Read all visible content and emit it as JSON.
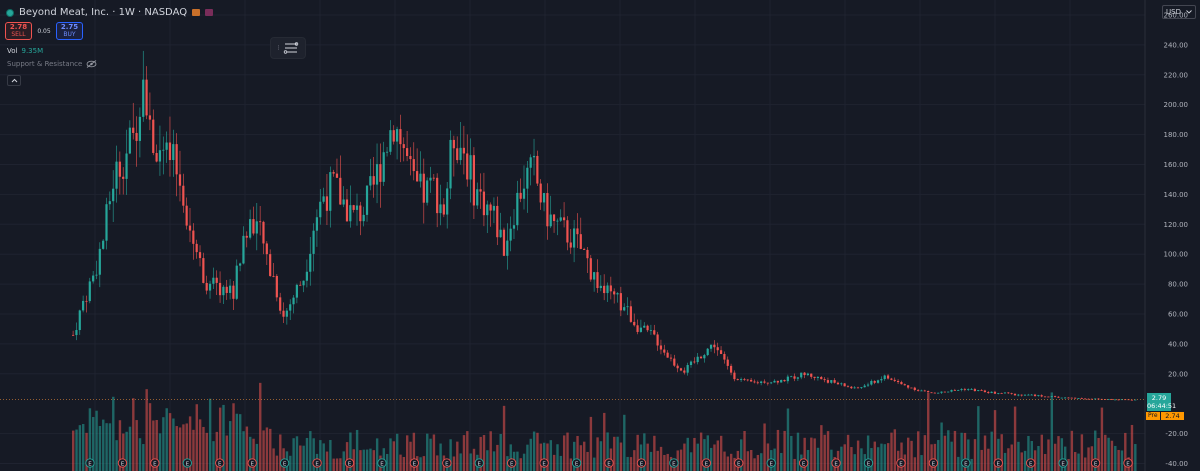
{
  "header": {
    "title": "Beyond Meat, Inc. · 1W · NASDAQ",
    "sell_price": "2.78",
    "sell_label": "SELL",
    "spread": "0.05",
    "buy_price": "2.75",
    "buy_label": "BUY",
    "vol_label": "Vol",
    "vol_value": "9.35M",
    "indicator_label": "Support & Resistance",
    "currency": "USD"
  },
  "last_price": {
    "value": "2.79",
    "countdown": "06:44:51",
    "pre_label": "Pre",
    "pre_value": "2.74"
  },
  "colors": {
    "background": "#161a25",
    "up": "#26a69a",
    "down": "#ef5350",
    "grid": "#1f2330",
    "axis_text": "#b2b5be",
    "price_line": "#26a69a",
    "pre_market": "#ff9800"
  },
  "icons": {
    "live": "live-dot-icon",
    "flag_a": "exchange-flag-icon",
    "flag_b": "data-flag-icon",
    "visibility": "eye-crossed-icon",
    "collapse": "chevron-up-icon",
    "toolbar": "drawing-list-icon",
    "dropdown": "chevron-down-icon"
  },
  "chart_data": {
    "type": "candlestick",
    "interval": "1W",
    "ylim": [
      -45,
      270
    ],
    "y_ticks": [
      "260.00",
      "240.00",
      "220.00",
      "200.00",
      "180.00",
      "160.00",
      "140.00",
      "120.00",
      "100.00",
      "80.00",
      "60.00",
      "40.00",
      "20.00",
      "-20.00",
      "-40.00"
    ],
    "y_tick_values": [
      260,
      240,
      220,
      200,
      180,
      160,
      140,
      120,
      100,
      80,
      60,
      40,
      20,
      -20,
      -40
    ],
    "grid": true,
    "last_price": 2.79,
    "earnings_events": 33,
    "trend": [
      [
        0,
        46
      ],
      [
        3,
        68
      ],
      [
        6,
        85
      ],
      [
        9,
        110
      ],
      [
        12,
        150
      ],
      [
        15,
        165
      ],
      [
        18,
        176
      ],
      [
        21,
        225
      ],
      [
        24,
        175
      ],
      [
        27,
        165
      ],
      [
        30,
        160
      ],
      [
        33,
        140
      ],
      [
        36,
        110
      ],
      [
        39,
        85
      ],
      [
        42,
        78
      ],
      [
        45,
        77
      ],
      [
        48,
        75
      ],
      [
        51,
        110
      ],
      [
        54,
        125
      ],
      [
        57,
        105
      ],
      [
        60,
        85
      ],
      [
        63,
        58
      ],
      [
        66,
        72
      ],
      [
        69,
        85
      ],
      [
        72,
        120
      ],
      [
        75,
        140
      ],
      [
        78,
        145
      ],
      [
        81,
        135
      ],
      [
        84,
        125
      ],
      [
        87,
        130
      ],
      [
        90,
        145
      ],
      [
        93,
        170
      ],
      [
        96,
        190
      ],
      [
        99,
        170
      ],
      [
        102,
        145
      ],
      [
        105,
        140
      ],
      [
        108,
        145
      ],
      [
        111,
        130
      ],
      [
        114,
        180
      ],
      [
        117,
        170
      ],
      [
        120,
        145
      ],
      [
        123,
        135
      ],
      [
        126,
        125
      ],
      [
        129,
        105
      ],
      [
        132,
        130
      ],
      [
        135,
        150
      ],
      [
        138,
        155
      ],
      [
        141,
        130
      ],
      [
        144,
        120
      ],
      [
        147,
        115
      ],
      [
        150,
        110
      ],
      [
        153,
        100
      ],
      [
        156,
        85
      ],
      [
        159,
        75
      ],
      [
        162,
        70
      ],
      [
        165,
        65
      ],
      [
        168,
        55
      ],
      [
        171,
        48
      ],
      [
        174,
        45
      ],
      [
        177,
        35
      ],
      [
        180,
        27
      ],
      [
        183,
        22
      ],
      [
        186,
        28
      ],
      [
        189,
        35
      ],
      [
        192,
        40
      ],
      [
        195,
        28
      ],
      [
        198,
        18
      ],
      [
        201,
        15
      ],
      [
        204,
        14
      ],
      [
        207,
        15
      ],
      [
        210,
        15
      ],
      [
        213,
        16
      ],
      [
        216,
        18
      ],
      [
        219,
        20
      ],
      [
        222,
        18
      ],
      [
        225,
        16
      ],
      [
        228,
        14
      ],
      [
        231,
        12
      ],
      [
        234,
        10
      ],
      [
        237,
        12
      ],
      [
        240,
        15
      ],
      [
        243,
        18
      ],
      [
        246,
        15
      ],
      [
        249,
        12
      ],
      [
        252,
        10
      ],
      [
        255,
        8
      ],
      [
        258,
        7
      ],
      [
        261,
        8
      ],
      [
        264,
        9
      ],
      [
        267,
        10
      ],
      [
        270,
        9
      ],
      [
        273,
        8
      ],
      [
        276,
        7
      ],
      [
        279,
        7
      ],
      [
        282,
        6
      ],
      [
        285,
        6
      ],
      [
        288,
        5.5
      ],
      [
        291,
        5
      ],
      [
        294,
        4.5
      ],
      [
        297,
        4
      ],
      [
        300,
        3.8
      ],
      [
        303,
        3.5
      ],
      [
        306,
        3.2
      ],
      [
        309,
        3
      ],
      [
        312,
        2.9
      ],
      [
        315,
        2.8
      ],
      [
        318,
        2.79
      ]
    ]
  }
}
